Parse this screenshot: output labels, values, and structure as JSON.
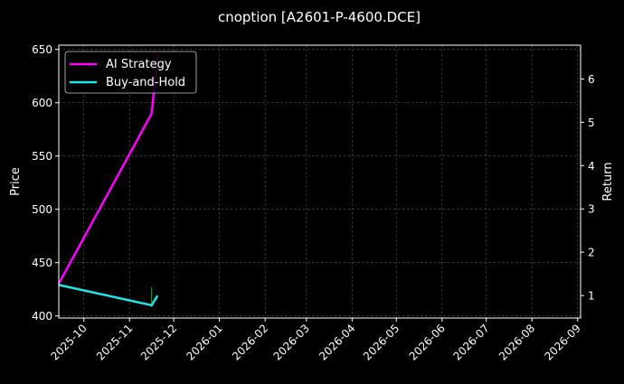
{
  "chart_data": {
    "type": "line",
    "title": "cnoption [A2601-P-4600.DCE]",
    "ylabel": "Price",
    "y2label": "Return",
    "xlabel": "",
    "xlim": [
      "2025-09-14",
      "2026-09-03"
    ],
    "ylim": [
      398,
      654
    ],
    "y2lim": [
      0.48,
      6.78
    ],
    "y_ticks": [
      400,
      450,
      500,
      550,
      600,
      650
    ],
    "y2_ticks": [
      1,
      2,
      3,
      4,
      5,
      6
    ],
    "x_ticks": [
      "2025-10",
      "2025-11",
      "2025-12",
      "2026-01",
      "2026-02",
      "2026-03",
      "2026-04",
      "2026-05",
      "2026-06",
      "2026-07",
      "2026-08",
      "2026-09"
    ],
    "grid": true,
    "legend_position": "top-left",
    "series": [
      {
        "name": "AI Strategy",
        "color": "#ff00ff",
        "axis": "right",
        "x": [
          "2025-09-14",
          "2025-11-16",
          "2025-11-20"
        ],
        "values": [
          1.27,
          5.2,
          6.55
        ]
      },
      {
        "name": "Buy-and-Hold",
        "color": "#22e6e6",
        "axis": "left",
        "x": [
          "2025-09-14",
          "2025-11-16",
          "2025-11-20"
        ],
        "values": [
          429,
          410,
          419
        ]
      }
    ],
    "markers": [
      {
        "x": "2025-11-16",
        "y_from": 408,
        "y_to": 427,
        "color": "#00aa00"
      }
    ]
  }
}
